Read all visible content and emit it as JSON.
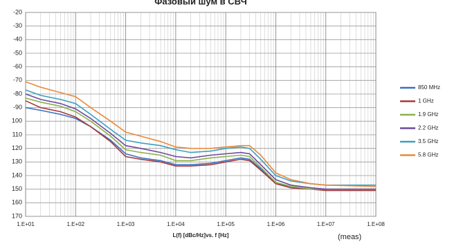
{
  "chart_data": {
    "type": "line",
    "title": "Фазовый шум в СВЧ",
    "x_label": "L(f) [dBc/Hz]vs. f [Hz]",
    "annotation": "(meas)",
    "x": [
      10,
      20,
      50,
      100,
      200,
      500,
      1000,
      2000,
      5000,
      10000,
      20000,
      50000,
      100000,
      200000,
      300000,
      500000,
      1000000,
      2000000,
      5000000,
      10000000,
      100000000
    ],
    "series": [
      {
        "name": "850 MHz",
        "color": "#3a6fc4",
        "values": [
          -90,
          -92,
          -95,
          -98,
          -104,
          -114,
          -124,
          -127,
          -129,
          -132,
          -132,
          -131,
          -129,
          -127,
          -128,
          -135,
          -145,
          -149,
          -150,
          -150,
          -150
        ]
      },
      {
        "name": "1 GHz",
        "color": "#a33a3a",
        "values": [
          -85,
          -90,
          -93,
          -97,
          -104,
          -115,
          -126,
          -128,
          -130,
          -133,
          -133,
          -132,
          -130,
          -128,
          -129,
          -136,
          -146,
          -149,
          -150,
          -151,
          -151
        ]
      },
      {
        "name": "1.9 GHz",
        "color": "#8db04a",
        "values": [
          -83,
          -86,
          -89,
          -93,
          -100,
          -111,
          -121,
          -123,
          -125,
          -129,
          -129,
          -127,
          -126,
          -125,
          -126,
          -134,
          -145,
          -148,
          -150,
          -150,
          -150
        ]
      },
      {
        "name": "2.2 GHz",
        "color": "#6a4a9c",
        "values": [
          -80,
          -84,
          -87,
          -91,
          -98,
          -109,
          -118,
          -120,
          -123,
          -126,
          -127,
          -125,
          -124,
          -123,
          -124,
          -132,
          -143,
          -147,
          -149,
          -150,
          -150
        ]
      },
      {
        "name": "3.5 GHz",
        "color": "#3a9fc0",
        "values": [
          -77,
          -81,
          -84,
          -87,
          -95,
          -106,
          -114,
          -116,
          -118,
          -121,
          -123,
          -122,
          -120,
          -119,
          -120,
          -128,
          -140,
          -144,
          -146,
          -147,
          -147
        ]
      },
      {
        "name": "5.8 GHz",
        "color": "#e8893a",
        "values": [
          -71,
          -75,
          -79,
          -82,
          -90,
          -100,
          -108,
          -111,
          -115,
          -119,
          -120,
          -120,
          -119,
          -118,
          -118,
          -125,
          -138,
          -143,
          -146,
          -147,
          -148
        ]
      }
    ],
    "xlim": [
      10,
      100000000
    ],
    "log_x": true,
    "xticks": [
      {
        "value": 10,
        "label": "1.E+01"
      },
      {
        "value": 100,
        "label": "1.E+02"
      },
      {
        "value": 1000,
        "label": "1.E+03"
      },
      {
        "value": 10000,
        "label": "1.E+04"
      },
      {
        "value": 100000,
        "label": "1.E+05"
      },
      {
        "value": 1000000,
        "label": "1.E+06"
      },
      {
        "value": 10000000,
        "label": "1.E+07"
      },
      {
        "value": 100000000,
        "label": "1.E+08"
      }
    ],
    "ylim": [
      -170,
      -20
    ],
    "yticks": [
      -20,
      -30,
      -40,
      -50,
      -60,
      -70,
      -80,
      -90,
      {
        "value": -100,
        "label": "100"
      },
      {
        "value": -110,
        "label": "110"
      },
      {
        "value": -120,
        "label": "120"
      },
      {
        "value": -130,
        "label": "130"
      },
      {
        "value": -140,
        "label": "140"
      },
      {
        "value": -150,
        "label": "150"
      },
      {
        "value": -160,
        "label": "160"
      },
      {
        "value": -170,
        "label": "170"
      }
    ],
    "grid": true,
    "legend": "right"
  }
}
